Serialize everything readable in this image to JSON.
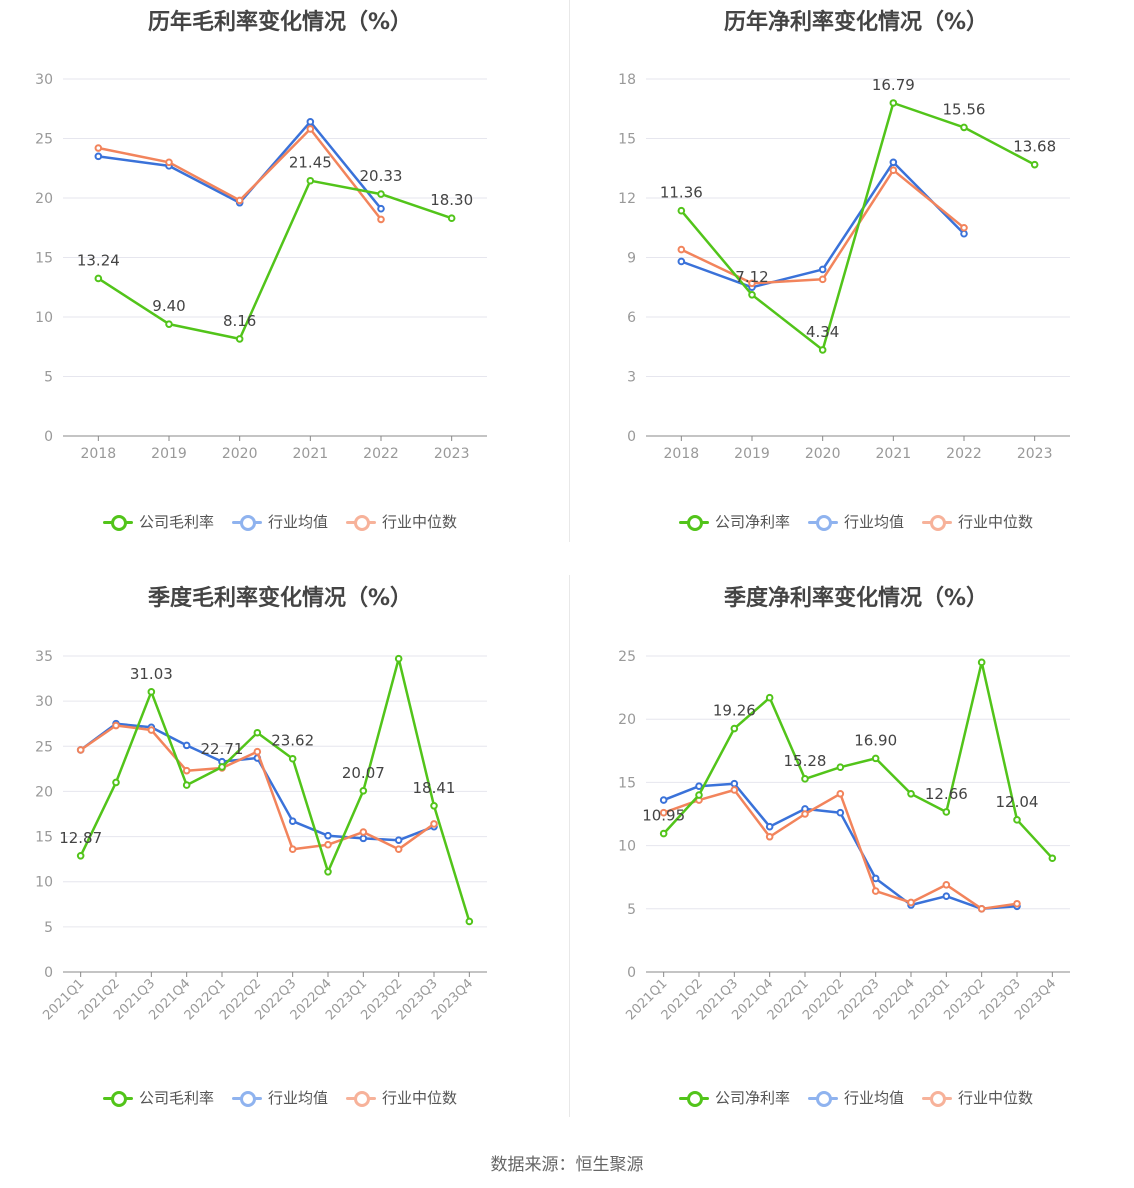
{
  "colors": {
    "company": "#52c41a",
    "avg": "#3a72d9",
    "median": "#f2845c",
    "legend_avg": "#8fb3ef",
    "legend_median": "#f7b29a",
    "axis": "#999999",
    "grid": "#e6e6ee"
  },
  "source": "数据来源：恒生聚源",
  "charts": [
    {
      "title": "历年毛利率变化情况（%）",
      "legend": [
        "公司毛利率",
        "行业均值",
        "行业中位数"
      ]
    },
    {
      "title": "历年净利率变化情况（%）",
      "legend": [
        "公司净利率",
        "行业均值",
        "行业中位数"
      ]
    },
    {
      "title": "季度毛利率变化情况（%）",
      "legend": [
        "公司毛利率",
        "行业均值",
        "行业中位数"
      ]
    },
    {
      "title": "季度净利率变化情况（%）",
      "legend": [
        "公司净利率",
        "行业均值",
        "行业中位数"
      ]
    }
  ],
  "chart_data": [
    {
      "type": "line",
      "title": "历年毛利率变化情况（%）",
      "categories": [
        "2018",
        "2019",
        "2020",
        "2021",
        "2022",
        "2023"
      ],
      "ylim": [
        0,
        30
      ],
      "yticks": [
        0,
        5,
        10,
        15,
        20,
        25,
        30
      ],
      "grid": true,
      "legend_position": "bottom",
      "series": [
        {
          "name": "公司毛利率",
          "values": [
            13.24,
            9.4,
            8.16,
            21.45,
            20.33,
            18.3
          ],
          "labels": [
            "13.24",
            "9.40",
            "8.16",
            "21.45",
            "20.33",
            "18.30"
          ]
        },
        {
          "name": "行业均值",
          "values": [
            23.5,
            22.7,
            19.6,
            26.4,
            19.1,
            null
          ]
        },
        {
          "name": "行业中位数",
          "values": [
            24.2,
            23.0,
            19.8,
            25.8,
            18.2,
            null
          ]
        }
      ]
    },
    {
      "type": "line",
      "title": "历年净利率变化情况（%）",
      "categories": [
        "2018",
        "2019",
        "2020",
        "2021",
        "2022",
        "2023"
      ],
      "ylim": [
        0,
        18
      ],
      "yticks": [
        0,
        3,
        6,
        9,
        12,
        15,
        18
      ],
      "grid": true,
      "legend_position": "bottom",
      "series": [
        {
          "name": "公司净利率",
          "values": [
            11.36,
            7.12,
            4.34,
            16.79,
            15.56,
            13.68
          ],
          "labels": [
            "11.36",
            "7.12",
            "4.34",
            "16.79",
            "15.56",
            "13.68"
          ]
        },
        {
          "name": "行业均值",
          "values": [
            8.8,
            7.5,
            8.4,
            13.8,
            10.2,
            null
          ]
        },
        {
          "name": "行业中位数",
          "values": [
            9.4,
            7.7,
            7.9,
            13.4,
            10.5,
            null
          ]
        }
      ]
    },
    {
      "type": "line",
      "title": "季度毛利率变化情况（%）",
      "categories": [
        "2021Q1",
        "2021Q2",
        "2021Q3",
        "2021Q4",
        "2022Q1",
        "2022Q2",
        "2022Q3",
        "2022Q4",
        "2023Q1",
        "2023Q2",
        "2023Q3",
        "2023Q4"
      ],
      "ylim": [
        0,
        35
      ],
      "yticks": [
        0,
        5,
        10,
        15,
        20,
        25,
        30,
        35
      ],
      "grid": true,
      "legend_position": "bottom",
      "series": [
        {
          "name": "公司毛利率",
          "values": [
            12.87,
            21.0,
            31.03,
            20.7,
            22.71,
            26.5,
            23.62,
            11.1,
            20.07,
            34.7,
            18.41,
            5.6
          ],
          "labels": [
            "12.87",
            "",
            "31.03",
            "",
            "22.71",
            "",
            "23.62",
            "",
            "20.07",
            "",
            "18.41",
            ""
          ]
        },
        {
          "name": "行业均值",
          "values": [
            24.6,
            27.5,
            27.1,
            25.1,
            23.3,
            23.7,
            16.7,
            15.1,
            14.8,
            14.6,
            16.1,
            null
          ]
        },
        {
          "name": "行业中位数",
          "values": [
            24.6,
            27.3,
            26.8,
            22.3,
            22.6,
            24.4,
            13.6,
            14.1,
            15.5,
            13.6,
            16.4,
            null
          ]
        }
      ]
    },
    {
      "type": "line",
      "title": "季度净利率变化情况（%）",
      "categories": [
        "2021Q1",
        "2021Q2",
        "2021Q3",
        "2021Q4",
        "2022Q1",
        "2022Q2",
        "2022Q3",
        "2022Q4",
        "2023Q1",
        "2023Q2",
        "2023Q3",
        "2023Q4"
      ],
      "ylim": [
        0,
        25
      ],
      "yticks": [
        0,
        5,
        10,
        15,
        20,
        25
      ],
      "grid": true,
      "legend_position": "bottom",
      "series": [
        {
          "name": "公司净利率",
          "values": [
            10.95,
            14.0,
            19.26,
            21.7,
            15.28,
            16.2,
            16.9,
            14.1,
            12.66,
            24.5,
            12.04,
            9.0
          ],
          "labels": [
            "10.95",
            "",
            "19.26",
            "",
            "15.28",
            "",
            "16.90",
            "",
            "12.66",
            "",
            "12.04",
            ""
          ]
        },
        {
          "name": "行业均值",
          "values": [
            13.6,
            14.7,
            14.9,
            11.5,
            12.9,
            12.6,
            7.4,
            5.3,
            6.0,
            5.0,
            5.2,
            null
          ]
        },
        {
          "name": "行业中位数",
          "values": [
            12.6,
            13.6,
            14.4,
            10.7,
            12.5,
            14.1,
            6.4,
            5.5,
            6.9,
            5.0,
            5.4,
            null
          ]
        }
      ]
    }
  ]
}
